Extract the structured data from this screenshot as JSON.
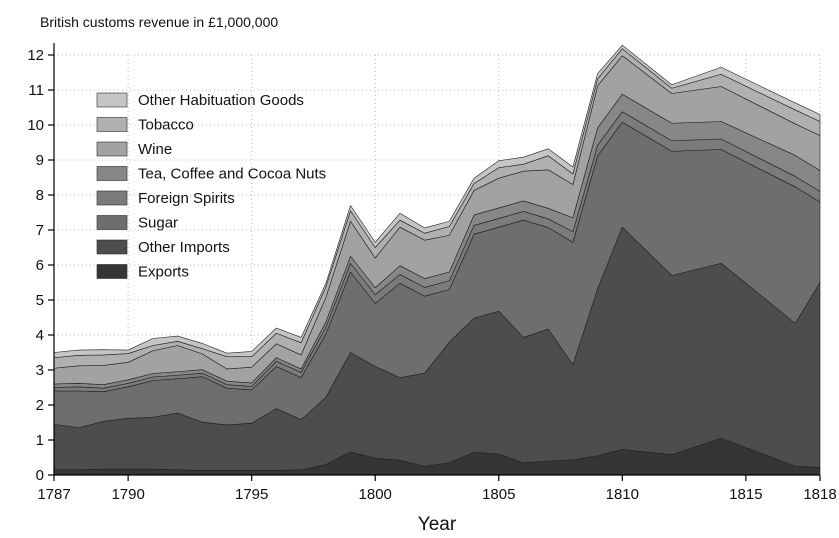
{
  "chart_data": {
    "type": "area",
    "stacked": true,
    "title": "British customs revenue in £1,000,000",
    "xlabel": "Year",
    "ylabel": "",
    "xlim": [
      1787,
      1818
    ],
    "ylim": [
      0,
      12
    ],
    "x_ticks": [
      1787,
      1790,
      1795,
      1800,
      1805,
      1810,
      1815,
      1818
    ],
    "y_ticks": [
      0,
      1,
      2,
      3,
      4,
      5,
      6,
      7,
      8,
      9,
      10,
      11,
      12
    ],
    "grid": true,
    "legend_position": "top-left",
    "x": [
      1787,
      1788,
      1789,
      1790,
      1791,
      1792,
      1793,
      1794,
      1795,
      1796,
      1797,
      1798,
      1799,
      1800,
      1801,
      1802,
      1803,
      1804,
      1805,
      1806,
      1807,
      1808,
      1809,
      1810,
      1812,
      1814,
      1817,
      1818
    ],
    "series": [
      {
        "name": "Exports",
        "color": "#353535",
        "values": [
          0.15,
          0.15,
          0.17,
          0.17,
          0.17,
          0.15,
          0.13,
          0.13,
          0.13,
          0.13,
          0.15,
          0.3,
          0.66,
          0.48,
          0.42,
          0.25,
          0.35,
          0.65,
          0.6,
          0.35,
          0.4,
          0.43,
          0.55,
          0.73,
          0.58,
          1.05,
          0.25,
          0.22
        ]
      },
      {
        "name": "Other Imports",
        "color": "#4d4d4d",
        "values": [
          1.3,
          1.2,
          1.36,
          1.45,
          1.48,
          1.62,
          1.38,
          1.3,
          1.35,
          1.77,
          1.43,
          1.92,
          2.84,
          2.62,
          2.36,
          2.66,
          3.45,
          3.83,
          4.08,
          3.58,
          3.77,
          2.72,
          4.77,
          6.35,
          5.12,
          5.0,
          4.08,
          5.28
        ]
      },
      {
        "name": "Sugar",
        "color": "#6e6e6e",
        "values": [
          0.95,
          1.05,
          0.85,
          0.9,
          1.05,
          0.98,
          1.3,
          1.05,
          0.95,
          1.2,
          1.2,
          1.8,
          2.3,
          1.8,
          2.7,
          2.2,
          1.5,
          2.4,
          2.4,
          3.35,
          2.9,
          3.5,
          3.8,
          3.0,
          3.55,
          3.25,
          3.9,
          2.3
        ]
      },
      {
        "name": "Foreign Spirits",
        "color": "#7b7b7b",
        "values": [
          0.1,
          0.12,
          0.1,
          0.1,
          0.1,
          0.1,
          0.1,
          0.1,
          0.1,
          0.15,
          0.15,
          0.2,
          0.25,
          0.25,
          0.25,
          0.25,
          0.25,
          0.25,
          0.25,
          0.25,
          0.25,
          0.3,
          0.3,
          0.3,
          0.3,
          0.3,
          0.3,
          0.3
        ]
      },
      {
        "name": "Tea, Coffee and Cocoa Nuts",
        "color": "#878787",
        "values": [
          0.1,
          0.1,
          0.1,
          0.1,
          0.1,
          0.1,
          0.1,
          0.1,
          0.1,
          0.1,
          0.1,
          0.15,
          0.2,
          0.2,
          0.25,
          0.25,
          0.25,
          0.3,
          0.3,
          0.3,
          0.3,
          0.4,
          0.5,
          0.5,
          0.5,
          0.5,
          0.6,
          0.6
        ]
      },
      {
        "name": "Wine",
        "color": "#a2a2a2",
        "values": [
          0.45,
          0.5,
          0.55,
          0.5,
          0.65,
          0.75,
          0.45,
          0.35,
          0.45,
          0.4,
          0.4,
          0.7,
          1.0,
          0.85,
          1.1,
          1.1,
          1.05,
          0.7,
          0.85,
          0.85,
          1.1,
          0.95,
          1.2,
          1.1,
          0.85,
          1.0,
          0.9,
          1.0
        ]
      },
      {
        "name": "Tobacco",
        "color": "#b0b0b0",
        "values": [
          0.3,
          0.3,
          0.3,
          0.25,
          0.15,
          0.12,
          0.15,
          0.35,
          0.3,
          0.3,
          0.35,
          0.3,
          0.3,
          0.3,
          0.2,
          0.2,
          0.25,
          0.2,
          0.3,
          0.2,
          0.4,
          0.3,
          0.2,
          0.2,
          0.15,
          0.35,
          0.4,
          0.4
        ]
      },
      {
        "name": "Other Habituation Goods",
        "color": "#c5c5c5",
        "values": [
          0.15,
          0.15,
          0.15,
          0.1,
          0.2,
          0.15,
          0.15,
          0.1,
          0.15,
          0.15,
          0.15,
          0.1,
          0.15,
          0.15,
          0.2,
          0.15,
          0.15,
          0.15,
          0.2,
          0.2,
          0.2,
          0.2,
          0.15,
          0.1,
          0.1,
          0.2,
          0.2,
          0.2
        ]
      }
    ]
  }
}
